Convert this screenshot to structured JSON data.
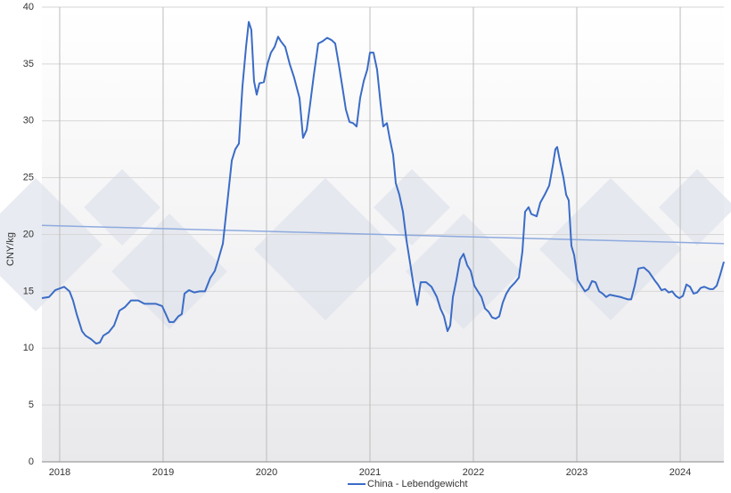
{
  "chart_data": {
    "type": "line",
    "y_label": "CNY/kg",
    "xlim": [
      2017.828,
      2024.422
    ],
    "xticks": [
      2018,
      2019,
      2020,
      2021,
      2022,
      2023,
      2024
    ],
    "ylim": [
      0,
      40
    ],
    "yticks": [
      0,
      5,
      10,
      15,
      20,
      25,
      30,
      35,
      40
    ],
    "grid": true,
    "legend": "bottom",
    "x": [
      2017.828,
      2017.897,
      2017.957,
      2018.043,
      2018.095,
      2018.129,
      2018.164,
      2018.216,
      2018.25,
      2018.302,
      2018.353,
      2018.388,
      2018.422,
      2018.474,
      2018.526,
      2018.578,
      2018.629,
      2018.69,
      2018.759,
      2018.819,
      2018.871,
      2018.931,
      2018.991,
      2019.026,
      2019.06,
      2019.103,
      2019.147,
      2019.181,
      2019.207,
      2019.25,
      2019.302,
      2019.353,
      2019.405,
      2019.457,
      2019.5,
      2019.534,
      2019.578,
      2019.629,
      2019.664,
      2019.698,
      2019.733,
      2019.767,
      2019.802,
      2019.828,
      2019.853,
      2019.879,
      2019.905,
      2019.931,
      2019.974,
      2020.009,
      2020.043,
      2020.078,
      2020.112,
      2020.138,
      2020.181,
      2020.224,
      2020.267,
      2020.319,
      2020.353,
      2020.388,
      2020.422,
      2020.457,
      2020.5,
      2020.543,
      2020.586,
      2020.629,
      2020.664,
      2020.698,
      2020.733,
      2020.767,
      2020.802,
      2020.836,
      2020.871,
      2020.905,
      2020.94,
      2020.974,
      2021.0,
      2021.034,
      2021.069,
      2021.103,
      2021.129,
      2021.164,
      2021.19,
      2021.224,
      2021.25,
      2021.284,
      2021.319,
      2021.353,
      2021.388,
      2021.422,
      2021.457,
      2021.491,
      2021.543,
      2021.595,
      2021.647,
      2021.681,
      2021.716,
      2021.75,
      2021.776,
      2021.802,
      2021.836,
      2021.871,
      2021.905,
      2021.94,
      2021.974,
      2022.009,
      2022.043,
      2022.078,
      2022.112,
      2022.147,
      2022.181,
      2022.216,
      2022.25,
      2022.284,
      2022.319,
      2022.353,
      2022.405,
      2022.44,
      2022.474,
      2022.5,
      2022.534,
      2022.56,
      2022.612,
      2022.647,
      2022.69,
      2022.733,
      2022.767,
      2022.793,
      2022.81,
      2022.836,
      2022.871,
      2022.897,
      2022.922,
      2022.948,
      2022.974,
      2023.009,
      2023.043,
      2023.078,
      2023.112,
      2023.147,
      2023.181,
      2023.216,
      2023.25,
      2023.284,
      2023.319,
      2023.371,
      2023.422,
      2023.457,
      2023.491,
      2023.526,
      2023.56,
      2023.595,
      2023.647,
      2023.698,
      2023.75,
      2023.784,
      2023.819,
      2023.853,
      2023.888,
      2023.922,
      2023.957,
      2023.991,
      2024.026,
      2024.06,
      2024.095,
      2024.129,
      2024.164,
      2024.198,
      2024.233,
      2024.284,
      2024.319,
      2024.353,
      2024.388,
      2024.422
    ],
    "series": [
      {
        "name": "China - Lebendgewicht",
        "color": "#3b6cc6",
        "values": [
          14.4,
          14.5,
          15.1,
          15.4,
          15.0,
          14.2,
          13.0,
          11.5,
          11.1,
          10.8,
          10.4,
          10.5,
          11.1,
          11.4,
          12.0,
          13.3,
          13.6,
          14.2,
          14.2,
          13.9,
          13.9,
          13.9,
          13.7,
          13.0,
          12.3,
          12.3,
          12.8,
          13.0,
          14.8,
          15.1,
          14.9,
          15.0,
          15.0,
          16.2,
          16.8,
          17.8,
          19.2,
          23.5,
          26.5,
          27.5,
          28.0,
          33.0,
          36.5,
          38.7,
          38.0,
          33.5,
          32.3,
          33.3,
          33.4,
          35.0,
          36.0,
          36.5,
          37.4,
          37.0,
          36.5,
          35.0,
          33.8,
          32.0,
          28.5,
          29.2,
          31.5,
          34.0,
          36.8,
          37.0,
          37.3,
          37.1,
          36.8,
          35.0,
          33.0,
          31.0,
          29.9,
          29.8,
          29.5,
          32.0,
          33.5,
          34.5,
          36.0,
          36.0,
          34.5,
          31.5,
          29.5,
          29.8,
          28.5,
          27.0,
          24.5,
          23.5,
          22.0,
          19.5,
          17.5,
          15.5,
          13.8,
          15.8,
          15.8,
          15.4,
          14.5,
          13.5,
          12.8,
          11.5,
          12.0,
          14.5,
          16.0,
          17.8,
          18.3,
          17.3,
          16.8,
          15.5,
          15.0,
          14.5,
          13.5,
          13.2,
          12.7,
          12.6,
          12.8,
          14.0,
          14.8,
          15.3,
          15.8,
          16.2,
          18.5,
          22.0,
          22.4,
          21.8,
          21.6,
          22.8,
          23.5,
          24.3,
          26.0,
          27.5,
          27.7,
          26.5,
          25.0,
          23.5,
          23.0,
          19.0,
          18.2,
          16.0,
          15.5,
          15.0,
          15.2,
          15.9,
          15.8,
          15.0,
          14.8,
          14.5,
          14.7,
          14.6,
          14.5,
          14.4,
          14.3,
          14.3,
          15.5,
          17.0,
          17.1,
          16.7,
          16.0,
          15.6,
          15.1,
          15.2,
          14.9,
          15.0,
          14.6,
          14.4,
          14.6,
          15.6,
          15.4,
          14.8,
          14.9,
          15.3,
          15.4,
          15.2,
          15.2,
          15.5,
          16.5,
          17.6
        ]
      }
    ],
    "trendline": {
      "x": [
        2017.828,
        2024.422
      ],
      "values": [
        20.8,
        19.2
      ],
      "color": "#8eaadf"
    }
  }
}
